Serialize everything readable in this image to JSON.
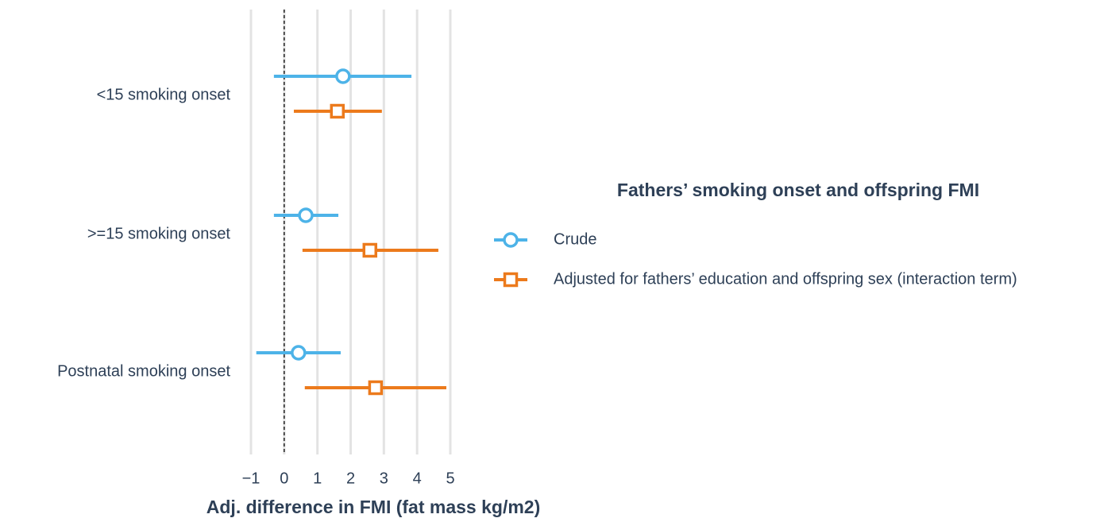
{
  "chart_data": {
    "type": "forest",
    "legend_title": "Fathers’ smoking onset and offspring FMI",
    "xlabel": "Adj. difference in FMI (fat mass kg/m2)",
    "categories": [
      "<15 smoking onset",
      ">=15 smoking onset",
      "Postnatal smoking onset"
    ],
    "series": [
      {
        "name": "Crude",
        "color": "#4db3e8",
        "marker": "circle",
        "values": [
          1.77,
          0.65,
          0.43
        ],
        "lower": [
          -0.31,
          -0.31,
          -0.84
        ],
        "upper": [
          3.83,
          1.63,
          1.7
        ]
      },
      {
        "name": "Adjusted for fathers’ education and offspring sex (interaction term)",
        "color": "#ec7a1c",
        "marker": "square",
        "values": [
          1.6,
          2.58,
          2.75
        ],
        "lower": [
          0.29,
          0.55,
          0.62
        ],
        "upper": [
          2.94,
          4.64,
          4.88
        ]
      }
    ],
    "xlim": [
      -1,
      5
    ],
    "xticks": [
      {
        "value": -1,
        "label": "−1"
      },
      0,
      1,
      2,
      3,
      4,
      5
    ],
    "reference_line": 0,
    "grid": true,
    "legend_position": "right"
  }
}
